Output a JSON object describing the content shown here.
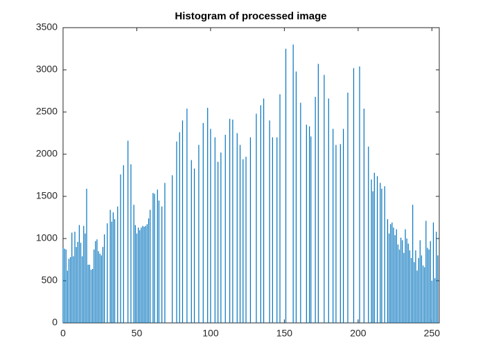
{
  "chart_data": {
    "type": "bar",
    "title": "Histogram of processed image",
    "color": "#0072bd",
    "x": [
      0,
      1,
      2,
      3,
      4,
      5,
      6,
      7,
      8,
      9,
      10,
      11,
      12,
      13,
      14,
      15,
      16,
      17,
      18,
      19,
      20,
      21,
      22,
      23,
      24,
      25,
      26,
      27,
      28,
      30,
      32,
      33,
      34,
      35,
      37,
      39,
      41,
      44,
      46,
      48,
      49,
      50,
      51,
      52,
      53,
      54,
      55,
      56,
      57,
      58,
      59,
      61,
      62,
      64,
      65,
      67,
      69,
      74,
      77,
      79,
      81,
      84,
      87,
      89,
      92,
      95,
      98,
      100,
      103,
      105,
      107,
      110,
      113,
      115,
      118,
      120,
      122,
      124,
      127,
      131,
      134,
      136,
      140,
      142,
      145,
      147,
      151,
      156,
      158,
      161,
      165,
      167,
      168,
      171,
      173,
      177,
      180,
      183,
      185,
      188,
      190,
      193,
      197,
      201,
      204,
      207,
      209,
      210,
      211,
      213,
      215,
      216,
      218,
      220,
      221,
      222,
      223,
      224,
      225,
      226,
      227,
      228,
      229,
      230,
      231,
      232,
      233,
      234,
      235,
      236,
      237,
      238,
      239,
      240,
      241,
      242,
      243,
      244,
      245,
      246,
      247,
      248,
      249,
      250,
      251,
      252,
      253,
      254
    ],
    "values": [
      890,
      880,
      870,
      620,
      760,
      780,
      1070,
      790,
      1080,
      900,
      960,
      1160,
      950,
      790,
      1150,
      1060,
      1590,
      690,
      690,
      630,
      640,
      870,
      970,
      990,
      850,
      820,
      800,
      900,
      1050,
      1180,
      1340,
      1200,
      1310,
      1230,
      1380,
      1760,
      1870,
      2160,
      1880,
      1400,
      1160,
      1060,
      1130,
      1100,
      1130,
      1150,
      1140,
      1150,
      1170,
      1240,
      1340,
      1540,
      1530,
      1580,
      1450,
      1380,
      1660,
      1750,
      2150,
      2260,
      2400,
      2540,
      1930,
      1830,
      2110,
      2370,
      2550,
      2300,
      2200,
      1910,
      2020,
      2230,
      2420,
      2410,
      2250,
      2110,
      1940,
      1970,
      2200,
      2480,
      2580,
      2660,
      2400,
      2200,
      2200,
      2710,
      3250,
      3300,
      2980,
      2610,
      2350,
      2330,
      2210,
      2680,
      3070,
      2940,
      2660,
      2300,
      2110,
      2120,
      2300,
      2730,
      3020,
      3040,
      2540,
      2090,
      1700,
      1560,
      1780,
      1740,
      1660,
      1590,
      1620,
      1230,
      1060,
      1170,
      1190,
      1130,
      1040,
      1110,
      930,
      870,
      1010,
      980,
      830,
      1110,
      1000,
      940,
      860,
      770,
      1400,
      720,
      860,
      620,
      770,
      980,
      800,
      680,
      660,
      1210,
      890,
      870,
      970,
      500,
      1190,
      530,
      1080,
      800
    ],
    "xlim": [
      0,
      255
    ],
    "xticks": [
      0,
      50,
      100,
      150,
      200,
      250
    ],
    "ylim": [
      0,
      3500
    ],
    "yticks": [
      0,
      500,
      1000,
      1500,
      2000,
      2500,
      3000,
      3500
    ]
  }
}
